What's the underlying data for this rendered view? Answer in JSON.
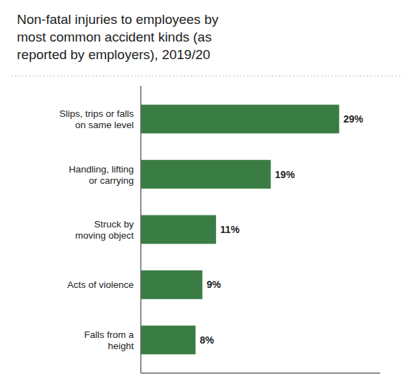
{
  "chart_data": {
    "type": "bar",
    "orientation": "horizontal",
    "title": "Non-fatal injuries to employees by\nmost common accident kinds (as\nreported by employers), 2019/20",
    "categories": [
      "Falls from a\nheight",
      "Acts of violence",
      "Struck by\nmoving object",
      "Handling, lifting\nor carrying",
      "Slips, trips or falls\non same level"
    ],
    "values": [
      8,
      9,
      11,
      19,
      29
    ],
    "value_labels": [
      "8%",
      "9%",
      "11%",
      "19%",
      "29%"
    ],
    "data_labels": true,
    "color": "#3a7d44",
    "xlim": [
      0,
      35
    ],
    "tick_labels": "y",
    "grid": false
  }
}
